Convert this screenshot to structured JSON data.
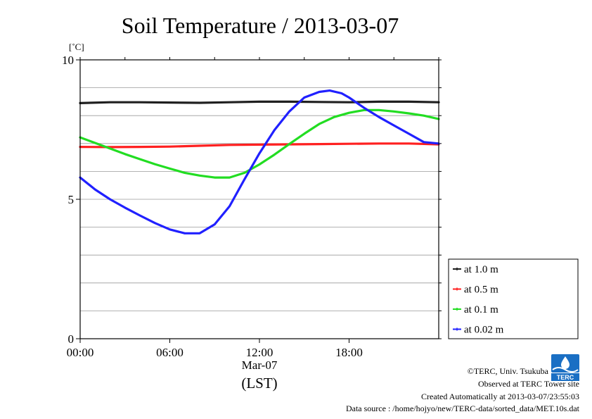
{
  "chart_data": {
    "type": "line",
    "title": "Soil Temperature / 2013-03-07",
    "unit_label": "[˚C]",
    "xlabel": "(LST)",
    "date_label": "Mar-07",
    "x_ticks": [
      "00:00",
      "06:00",
      "12:00",
      "18:00"
    ],
    "x_tick_hours": [
      0,
      6,
      12,
      18
    ],
    "xlim_hours": [
      0,
      24
    ],
    "y_ticks": [
      "0",
      "5",
      "10"
    ],
    "y_tick_values": [
      0,
      5,
      10
    ],
    "ylim": [
      0,
      10
    ],
    "grid": true,
    "legend_position": "right-bottom",
    "series": [
      {
        "name": "at 1.0 m",
        "color": "#202020",
        "x_hours": [
          0,
          2,
          4,
          6,
          8,
          10,
          12,
          14,
          16,
          18,
          20,
          22,
          24
        ],
        "values": [
          8.45,
          8.48,
          8.48,
          8.47,
          8.46,
          8.48,
          8.5,
          8.5,
          8.49,
          8.48,
          8.5,
          8.5,
          8.48
        ]
      },
      {
        "name": "at 0.5 m",
        "color": "#ff2020",
        "x_hours": [
          0,
          2,
          4,
          6,
          8,
          10,
          12,
          14,
          16,
          18,
          20,
          22,
          24
        ],
        "values": [
          6.88,
          6.87,
          6.88,
          6.89,
          6.92,
          6.95,
          6.96,
          6.97,
          6.98,
          6.99,
          7.0,
          7.0,
          6.97
        ]
      },
      {
        "name": "at 0.1 m",
        "color": "#22dd22",
        "x_hours": [
          0,
          1,
          2,
          3,
          4,
          5,
          6,
          7,
          8,
          9,
          10,
          11,
          12,
          13,
          14,
          15,
          16,
          17,
          18,
          19,
          20,
          21,
          22,
          23,
          24
        ],
        "values": [
          7.22,
          7.02,
          6.82,
          6.62,
          6.44,
          6.26,
          6.1,
          5.95,
          5.85,
          5.78,
          5.78,
          5.95,
          6.25,
          6.6,
          6.98,
          7.35,
          7.7,
          7.95,
          8.1,
          8.2,
          8.2,
          8.15,
          8.08,
          8.0,
          7.88
        ]
      },
      {
        "name": "at 0.02 m",
        "color": "#2020ff",
        "x_hours": [
          0,
          1,
          2,
          3,
          4,
          5,
          6,
          7,
          8,
          9,
          10,
          11,
          12,
          13,
          14,
          15,
          16,
          16.7,
          17.5,
          18,
          19,
          20,
          21,
          22,
          23,
          24
        ],
        "values": [
          5.78,
          5.35,
          5.0,
          4.7,
          4.42,
          4.15,
          3.92,
          3.78,
          3.78,
          4.1,
          4.75,
          5.72,
          6.65,
          7.48,
          8.15,
          8.65,
          8.85,
          8.9,
          8.8,
          8.65,
          8.28,
          7.95,
          7.65,
          7.35,
          7.05,
          7.0
        ]
      }
    ]
  },
  "credits": {
    "copyright": "©TERC, Univ. Tsukuba",
    "site": "Observed at TERC Tower site",
    "created": "Created Automatically at 2013-03-07/23:55:03",
    "source": "Data source : /home/hojyo/new/TERC-data/sorted_data/MET.10s.dat"
  },
  "logo": {
    "icon": "terc-logo-icon",
    "text": "TERC",
    "color": "#1a6fc4"
  }
}
